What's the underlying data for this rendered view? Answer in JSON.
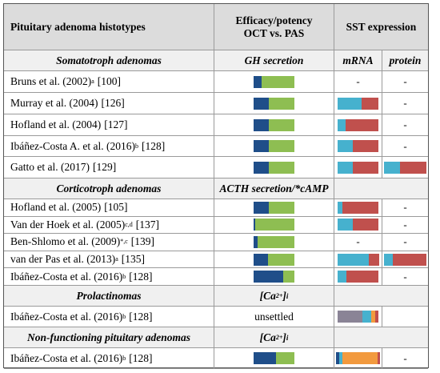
{
  "colors": {
    "dark_blue": "#1f4e89",
    "green": "#8ebe52",
    "light_blue": "#46b1ce",
    "red": "#c0504d",
    "gray": "#8a8496",
    "orange": "#f29a3e"
  },
  "header": {
    "col1": "Pituitary adenoma histotypes",
    "col2_line1": "Efficacy/potency",
    "col2_line2": "OCT vs. PAS",
    "col3": "SST expression"
  },
  "sections": {
    "somatotroph": {
      "title": "Somatotroph adenomas",
      "col2": "GH secretion",
      "mrna": "mRNA",
      "protein": "protein"
    },
    "corticotroph": {
      "title": "Corticotroph adenomas",
      "col2": "ACTH secretion/*cAMP"
    },
    "prolactinomas": {
      "title": "Prolactinomas",
      "col2": "[Ca",
      "col2_sup": "2+",
      "col2_sub": "i"
    },
    "nonfunctioning": {
      "title": "Non-functioning pituitary adenomas",
      "col2": "[Ca",
      "col2_sup": "2+",
      "col2_sub": "i"
    }
  },
  "rows": [
    {
      "author": "Bruns et al.  (2002)",
      "sup": "a",
      "ref": "[100]",
      "efficacy": [
        0.2,
        0.8
      ],
      "mrna_text": "-",
      "protein_text": "-"
    },
    {
      "author": "Murray et al. (2004)",
      "sup": "",
      "ref": "[126]",
      "efficacy": [
        0.38,
        0.62
      ],
      "mrna": [
        0.58,
        0.42
      ],
      "protein_text": "-"
    },
    {
      "author": "Hofland et al. (2004)",
      "sup": "",
      "ref": "[127]",
      "efficacy": [
        0.38,
        0.62
      ],
      "mrna": [
        0.2,
        0.8
      ],
      "protein_text": "-"
    },
    {
      "author": "Ibáñez-Costa A. et al. (2016)",
      "sup": "b",
      "ref": "[128]",
      "efficacy": [
        0.38,
        0.62
      ],
      "mrna": [
        0.38,
        0.62
      ],
      "protein_text": "-"
    },
    {
      "author": "Gatto et al. (2017)",
      "sup": "",
      "ref": "[129]",
      "efficacy": [
        0.38,
        0.62
      ],
      "mrna": [
        0.38,
        0.62
      ],
      "protein": [
        0.37,
        0.63
      ]
    },
    {
      "author": "Hofland et al. (2005)",
      "sup": "",
      "ref": "[105]",
      "efficacy": [
        0.38,
        0.62
      ],
      "mrna": [
        0.12,
        0.88
      ],
      "protein_text": "-"
    },
    {
      "author": "Van der Hoek et al. (2005)",
      "sup": "c,d",
      "ref": "[137]",
      "efficacy": [
        0.05,
        0.95
      ],
      "mrna": [
        0.38,
        0.62
      ],
      "protein_text": "-"
    },
    {
      "author": "Ben-Shlomo  et al. (2009)",
      "sup": "*,c",
      "ref": "[139]",
      "efficacy": [
        0.1,
        0.9
      ],
      "mrna_text": "-",
      "protein_text": "-"
    },
    {
      "author": "van der Pas et al. (2013)",
      "sup": "a",
      "ref": "[135]",
      "efficacy": [
        0.35,
        0.65
      ],
      "mrna": [
        0.75,
        0.25
      ],
      "protein": [
        0.2,
        0.8
      ]
    },
    {
      "author": "Ibáñez-Costa et al. (2016)",
      "sup": "b",
      "ref": "[128]",
      "efficacy": [
        0.72,
        0.28
      ],
      "mrna": [
        0.22,
        0.78
      ],
      "protein_text": "-"
    },
    {
      "author": "Ibáñez-Costa et al. (2016)",
      "sup": "b",
      "ref": "[128]",
      "efficacy_text": "unsettled",
      "mrna_multi": [
        0.6,
        0.22,
        0.1,
        0.08
      ],
      "protein_text": ""
    },
    {
      "author": "Ibáñez-Costa et al. (2016)",
      "sup": "b",
      "ref": "[128]",
      "efficacy": [
        0.55,
        0.45
      ],
      "mrna_multi2": [
        0.15,
        0.85
      ],
      "protein_text": "-"
    }
  ]
}
